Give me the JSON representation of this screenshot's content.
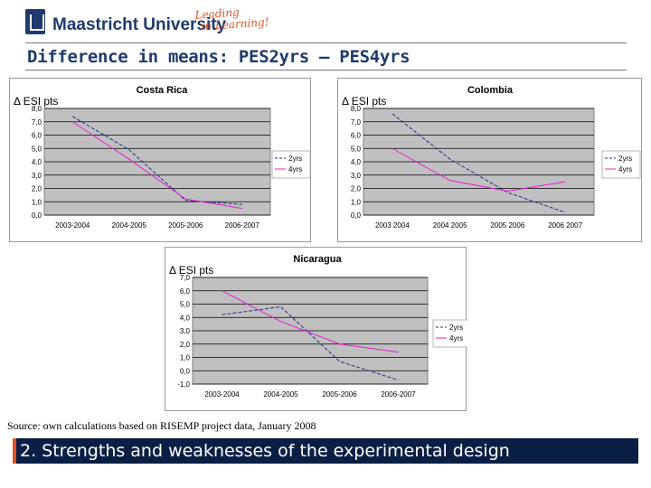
{
  "header": {
    "university": "Maastricht University",
    "slogan_line1": "Leading",
    "slogan_line2": "in Learning!"
  },
  "slide": {
    "title": "Difference in means: PES2yrs – PES4yrs",
    "source": "Source: own calculations based on RISEMP project data, January 2008",
    "footer": "2. Strengths and weaknesses of the experimental design"
  },
  "colors": {
    "brand_navy": "#1f3a6e",
    "footer_bg": "#0b1f45",
    "accent_orange": "#e2501f",
    "series_2yrs": "#1c2f8a",
    "series_4yrs": "#e020d0",
    "plot_bg": "#c0c0c0"
  },
  "chart_data": [
    {
      "type": "line",
      "title": "Costa Rica",
      "ylabel": "Δ ESI pts",
      "categories": [
        "2003-2004",
        "2004-2005",
        "2005-2006",
        "2006-2007"
      ],
      "yticks": [
        "8,0",
        "7,0",
        "6,0",
        "5,0",
        "4,0",
        "3,0",
        "2,0",
        "1,0",
        "0,0"
      ],
      "ylim": [
        0,
        8
      ],
      "legend_position": "right",
      "series": [
        {
          "name": "2yrs",
          "values": [
            7.4,
            4.9,
            1.1,
            0.8
          ],
          "style": "dashed"
        },
        {
          "name": "4yrs",
          "values": [
            7.0,
            4.2,
            1.2,
            0.5
          ],
          "style": "solid"
        }
      ]
    },
    {
      "type": "line",
      "title": "Colombia",
      "ylabel": "Δ ESI pts",
      "categories": [
        "2003 2004",
        "2004 2005",
        "2005 2006",
        "2006 2007"
      ],
      "yticks": [
        "8,0",
        "7,0",
        "6,0",
        "5,0",
        "4,0",
        "3,0",
        "2,0",
        "1,0",
        "0,0"
      ],
      "ylim": [
        0,
        8
      ],
      "legend_position": "right",
      "series": [
        {
          "name": "2yrs",
          "values": [
            7.6,
            4.2,
            1.7,
            0.2
          ],
          "style": "dashed"
        },
        {
          "name": "4yrs",
          "values": [
            5.0,
            2.6,
            1.8,
            2.5
          ],
          "style": "solid"
        }
      ]
    },
    {
      "type": "line",
      "title": "Nicaragua",
      "ylabel": "Δ ESI pts",
      "categories": [
        "2003-2004",
        "2004-2005",
        "2005-2006",
        "2006-2007"
      ],
      "yticks": [
        "7,0",
        "6,0",
        "5,0",
        "4,0",
        "3,0",
        "2,0",
        "1,0",
        "0,0",
        "-1,0"
      ],
      "ylim": [
        -1,
        7
      ],
      "legend_position": "right",
      "series": [
        {
          "name": "2yrs",
          "values": [
            4.2,
            4.8,
            0.7,
            -0.7
          ],
          "style": "dashed"
        },
        {
          "name": "4yrs",
          "values": [
            6.0,
            3.7,
            2.0,
            1.4
          ],
          "style": "solid"
        }
      ]
    }
  ]
}
